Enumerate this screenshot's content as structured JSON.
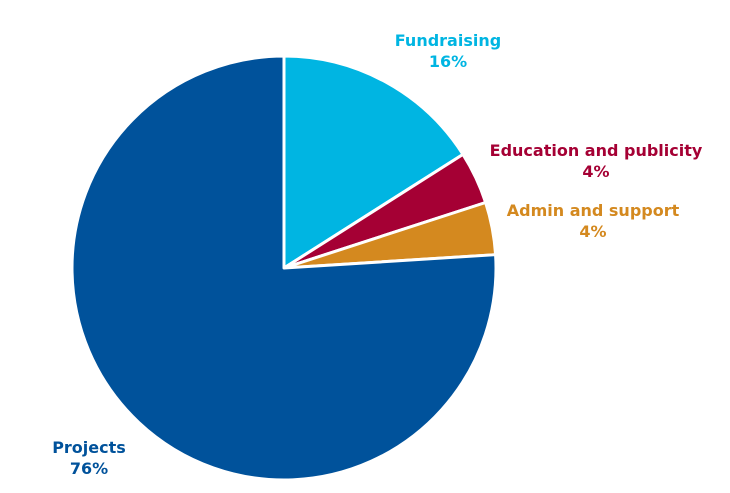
{
  "chart_data": {
    "type": "pie",
    "slices": [
      {
        "name": "Fundraising",
        "value": 16,
        "label": "16%",
        "color": "#00b5e2"
      },
      {
        "name": "Education and publicity",
        "value": 4,
        "label": "4%",
        "color": "#a50034"
      },
      {
        "name": "Admin and support",
        "value": 4,
        "label": "4%",
        "color": "#d4891f"
      },
      {
        "name": "Projects",
        "value": 76,
        "label": "76%",
        "color": "#00529b"
      }
    ],
    "start_angle": "12 o'clock",
    "direction": "clockwise",
    "legend": "none"
  }
}
